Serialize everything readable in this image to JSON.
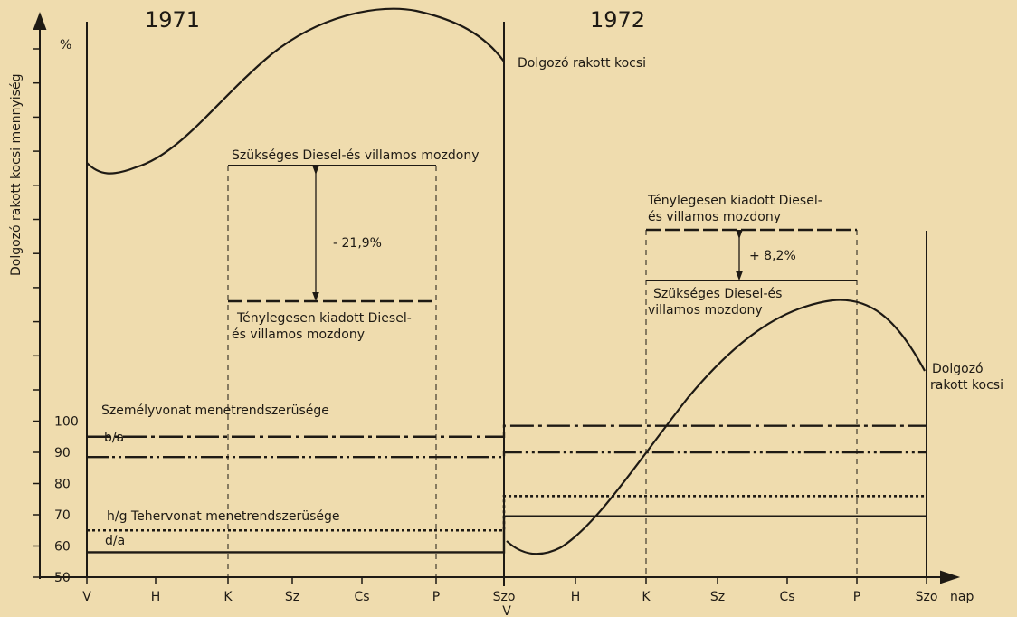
{
  "chart_data": {
    "type": "line",
    "years": [
      "1971",
      "1972"
    ],
    "ylabel": "Dolgozó rakott kocsi mennyiség",
    "ylabel_unit": "%",
    "xlabel": "nap",
    "x_ticks": [
      "V",
      "H",
      "K",
      "Sz",
      "Cs",
      "P",
      "Szo",
      "H",
      "K",
      "Sz",
      "Cs",
      "P",
      "Szo"
    ],
    "x_ticks_extra": "V",
    "y_ticks": [
      100,
      90,
      80,
      70,
      60,
      50
    ],
    "y_range": [
      50,
      100
    ],
    "grid": false,
    "series": [
      {
        "name": "Személyvonat menetrendszerüsége",
        "style": "dash-dot",
        "y_1971": 95,
        "y_1972": 98.5
      },
      {
        "name": "b/a",
        "style": "dash-dot-dot",
        "y_1971": 88.5,
        "y_1972": 90
      },
      {
        "name": "h/g Tehervonat menetrendszerüsége",
        "style": "dotted",
        "y_1971": 65,
        "y_1972": 76
      },
      {
        "name": "d/a",
        "style": "solid",
        "y_1971": 58,
        "y_1972": 69.5
      }
    ],
    "curve_label": "Dolgozó rakott kocsi",
    "curve_label_right": [
      "Dolgozó",
      "rakott kocsi"
    ],
    "annotations": {
      "y1971": {
        "needed": "Szükséges Diesel-és villamos mozdony",
        "actual": [
          "Ténylegesen kiadott Diesel-",
          "és villamos mozdony"
        ],
        "diff": "- 21,9%"
      },
      "y1972": {
        "actual": [
          "Ténylegesen kiadott Diesel-",
          "és villamos mozdony"
        ],
        "needed": [
          "Szükséges Diesel-és",
          "villamos mozdony"
        ],
        "diff": "+ 8,2%"
      }
    }
  }
}
